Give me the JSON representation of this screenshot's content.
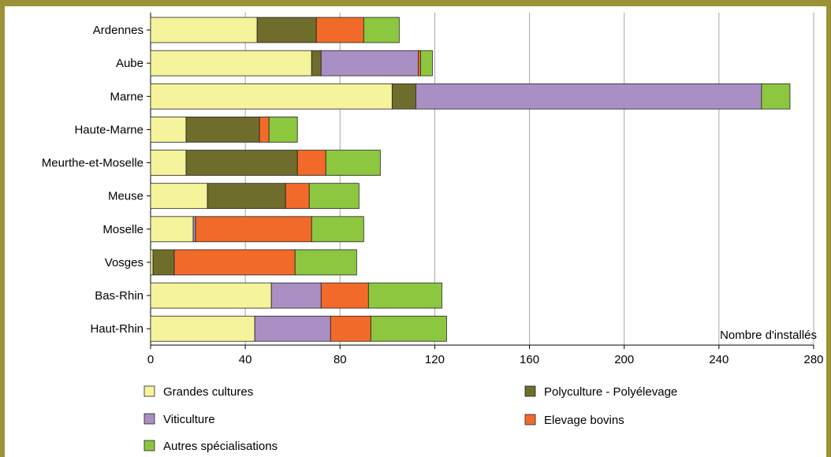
{
  "chart_data": {
    "type": "bar",
    "orientation": "horizontal",
    "stacked": true,
    "categories": [
      "Ardennes",
      "Aube",
      "Marne",
      "Haute-Marne",
      "Meurthe-et-Moselle",
      "Meuse",
      "Moselle",
      "Vosges",
      "Bas-Rhin",
      "Haut-Rhin"
    ],
    "series": [
      {
        "name": "Grandes cultures",
        "color": "#f5f39b",
        "values": [
          45,
          68,
          102,
          15,
          15,
          24,
          18,
          1,
          51,
          44
        ]
      },
      {
        "name": "Polyculture - Polyélevage",
        "color": "#6e6d2b",
        "values": [
          25,
          4,
          10,
          31,
          47,
          33,
          0,
          9,
          0,
          0
        ]
      },
      {
        "name": "Viticulture",
        "color": "#a98fc3",
        "values": [
          0,
          41,
          146,
          0,
          0,
          0,
          1,
          0,
          21,
          32
        ]
      },
      {
        "name": "Elevage bovins",
        "color": "#f26a2a",
        "values": [
          20,
          1,
          0,
          4,
          12,
          10,
          49,
          51,
          20,
          17
        ]
      },
      {
        "name": "Autres spécialisations",
        "color": "#8dc63f",
        "values": [
          15,
          5,
          12,
          12,
          23,
          21,
          22,
          26,
          31,
          32
        ]
      }
    ],
    "xlabel": "Nombre d'installés",
    "xlim": [
      0,
      280
    ],
    "xticks": [
      "0",
      "40",
      "80",
      "120",
      "160",
      "200",
      "240",
      "280"
    ],
    "grid": "vertical",
    "legend": [
      {
        "label": "Grandes cultures",
        "color": "#f5f39b"
      },
      {
        "label": "Polyculture - Polyélevage",
        "color": "#6e6d2b"
      },
      {
        "label": "Viticulture",
        "color": "#a98fc3"
      },
      {
        "label": "Elevage bovins",
        "color": "#f26a2a"
      },
      {
        "label": "Autres spécialisations",
        "color": "#8dc63f"
      }
    ],
    "legend_placement": "bottom"
  }
}
